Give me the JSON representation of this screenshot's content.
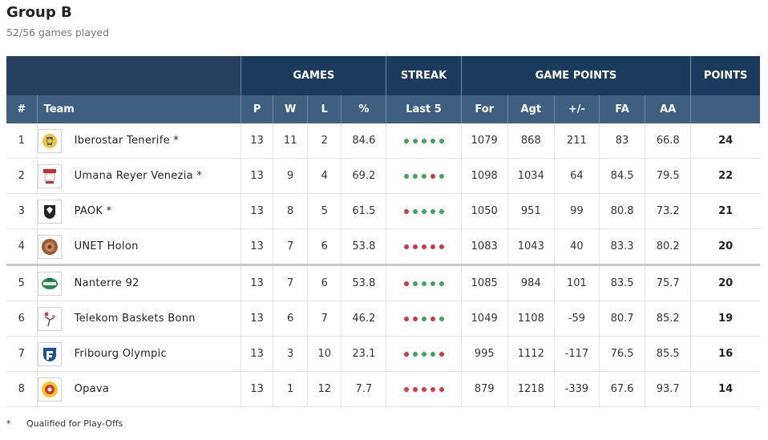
{
  "header": {
    "title": "Group B",
    "subtitle": "52/56 games played"
  },
  "groups": {
    "games": "GAMES",
    "streak": "STREAK",
    "game_points": "GAME POINTS",
    "points": "POINTS"
  },
  "columns": {
    "rank": "#",
    "team": "Team",
    "p": "P",
    "w": "W",
    "l": "L",
    "pct": "%",
    "last5": "Last 5",
    "for": "For",
    "agt": "Agt",
    "diff": "+/-",
    "fa": "FA",
    "aa": "AA"
  },
  "colors": {
    "win": "#3fa460",
    "loss": "#d9334a",
    "header_dark": "#1b3a5e",
    "header_light": "#3e5f7f"
  },
  "rows": [
    {
      "rank": "1",
      "team": "Iberostar Tenerife *",
      "logo": "tenerife-logo",
      "p": "13",
      "w": "11",
      "l": "2",
      "pct": "84.6",
      "streak": [
        "W",
        "W",
        "W",
        "W",
        "W"
      ],
      "for": "1079",
      "agt": "868",
      "diff": "211",
      "fa": "83",
      "aa": "66.8",
      "points": "24"
    },
    {
      "rank": "2",
      "team": "Umana Reyer Venezia *",
      "logo": "venezia-logo",
      "p": "13",
      "w": "9",
      "l": "4",
      "pct": "69.2",
      "streak": [
        "W",
        "W",
        "W",
        "L",
        "W"
      ],
      "for": "1098",
      "agt": "1034",
      "diff": "64",
      "fa": "84.5",
      "aa": "79.5",
      "points": "22"
    },
    {
      "rank": "3",
      "team": "PAOK *",
      "logo": "paok-logo",
      "p": "13",
      "w": "8",
      "l": "5",
      "pct": "61.5",
      "streak": [
        "L",
        "W",
        "W",
        "W",
        "W"
      ],
      "for": "1050",
      "agt": "951",
      "diff": "99",
      "fa": "80.8",
      "aa": "73.2",
      "points": "21"
    },
    {
      "rank": "4",
      "team": "UNET Holon",
      "logo": "holon-logo",
      "p": "13",
      "w": "7",
      "l": "6",
      "pct": "53.8",
      "streak": [
        "L",
        "L",
        "L",
        "L",
        "L"
      ],
      "for": "1083",
      "agt": "1043",
      "diff": "40",
      "fa": "83.3",
      "aa": "80.2",
      "points": "20"
    },
    {
      "rank": "5",
      "team": "Nanterre 92",
      "logo": "nanterre-logo",
      "p": "13",
      "w": "7",
      "l": "6",
      "pct": "53.8",
      "streak": [
        "L",
        "W",
        "W",
        "W",
        "W"
      ],
      "for": "1085",
      "agt": "984",
      "diff": "101",
      "fa": "83.5",
      "aa": "75.7",
      "points": "20"
    },
    {
      "rank": "6",
      "team": "Telekom Baskets Bonn",
      "logo": "bonn-logo",
      "p": "13",
      "w": "6",
      "l": "7",
      "pct": "46.2",
      "streak": [
        "L",
        "L",
        "W",
        "L",
        "W"
      ],
      "for": "1049",
      "agt": "1108",
      "diff": "-59",
      "fa": "80.7",
      "aa": "85.2",
      "points": "19"
    },
    {
      "rank": "7",
      "team": "Fribourg Olympic",
      "logo": "fribourg-logo",
      "p": "13",
      "w": "3",
      "l": "10",
      "pct": "23.1",
      "streak": [
        "L",
        "W",
        "W",
        "W",
        "L"
      ],
      "for": "995",
      "agt": "1112",
      "diff": "-117",
      "fa": "76.5",
      "aa": "85.5",
      "points": "16"
    },
    {
      "rank": "8",
      "team": "Opava",
      "logo": "opava-logo",
      "p": "13",
      "w": "1",
      "l": "12",
      "pct": "7.7",
      "streak": [
        "L",
        "L",
        "L",
        "L",
        "L"
      ],
      "for": "879",
      "agt": "1218",
      "diff": "-339",
      "fa": "67.6",
      "aa": "93.7",
      "points": "14"
    }
  ],
  "footnote": {
    "symbol": "*",
    "text": "Qualified for Play-Offs"
  }
}
